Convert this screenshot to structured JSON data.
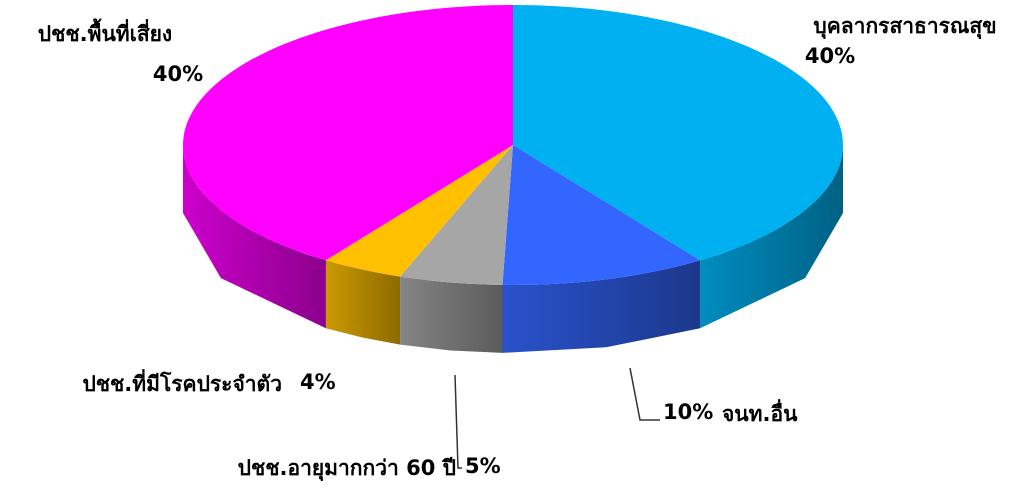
{
  "chart_data": {
    "type": "pie3d",
    "categories": [
      "บุคลากรสาธารณสุข",
      "จนท.อื่น",
      "ปชช.อายุมากกว่า 60 ปี",
      "ปชช.ที่มีโรคประจำตัว",
      "ปชช.พื้นที่เสี่ยง"
    ],
    "values": [
      40,
      10,
      5,
      4,
      40
    ],
    "value_labels": [
      "40%",
      "10%",
      "5%",
      "4%",
      "40%"
    ],
    "colors": [
      "#00b0f0",
      "#3366ff",
      "#a6a6a6",
      "#ffc000",
      "#ff00ff"
    ]
  }
}
